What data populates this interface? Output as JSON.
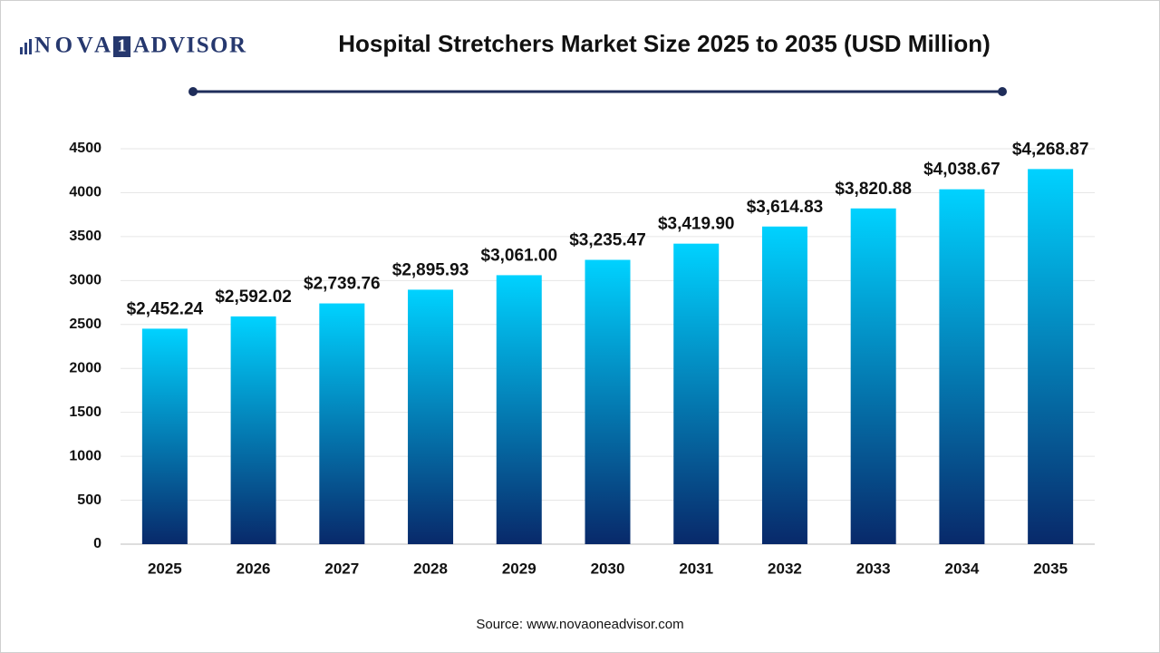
{
  "logo": {
    "left": "NOVA",
    "mark": "1",
    "right": "ADVISOR"
  },
  "chart_data": {
    "type": "bar",
    "title": "Hospital Stretchers Market Size 2025 to 2035  (USD Million)",
    "categories": [
      "2025",
      "2026",
      "2027",
      "2028",
      "2029",
      "2030",
      "2031",
      "2032",
      "2033",
      "2034",
      "2035"
    ],
    "values": [
      2452.24,
      2592.02,
      2739.76,
      2895.93,
      3061.0,
      3235.47,
      3419.9,
      3614.83,
      3820.88,
      4038.67,
      4268.87
    ],
    "value_labels": [
      "$2,452.24",
      "$2,592.02",
      "$2,739.76",
      "$2,895.93",
      "$3,061.00",
      "$3,235.47",
      "$3,419.90",
      "$3,614.83",
      "$3,820.88",
      "$4,038.67",
      "$4,268.87"
    ],
    "gradient": [
      "#00d2ff",
      "#08296a"
    ],
    "ylim": [
      0,
      4500
    ],
    "yticks": [
      0,
      500,
      1000,
      1500,
      2000,
      2500,
      3000,
      3500,
      4000,
      4500
    ],
    "grid": true,
    "source": "Source: www.novaoneadvisor.com"
  }
}
